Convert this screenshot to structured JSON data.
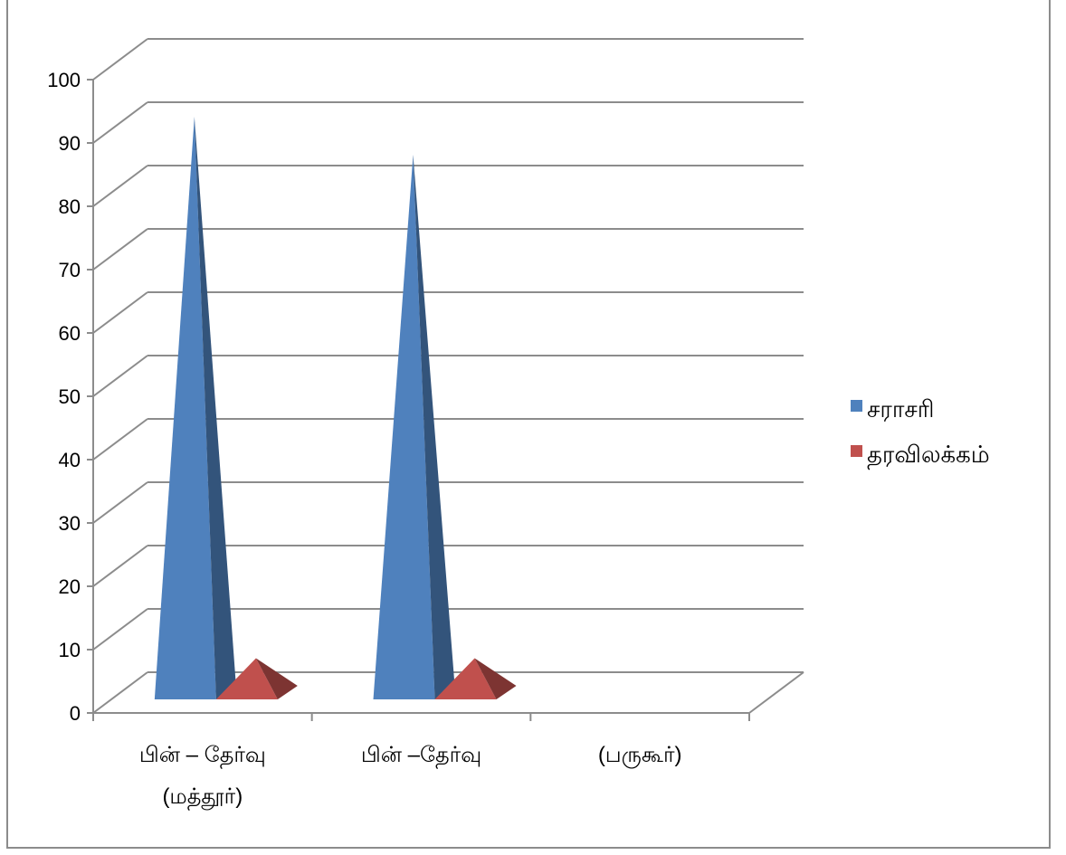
{
  "chart_data": {
    "type": "bar",
    "style": "3d-pyramid",
    "categories": [
      [
        "பின் – தேர்வு",
        "(மத்தூர்)"
      ],
      [
        "பின் –தேர்வு",
        ""
      ],
      [
        "(பருகூர்)",
        ""
      ]
    ],
    "series": [
      {
        "name": "சராசரி",
        "values": [
          92,
          86,
          null
        ],
        "color": "#4f81bd"
      },
      {
        "name": "தரவிலக்கம்",
        "values": [
          6.5,
          6.5,
          null
        ],
        "color": "#c0504d"
      }
    ],
    "ylim": [
      0,
      100
    ],
    "y_ticks": [
      0,
      10,
      20,
      30,
      40,
      50,
      60,
      70,
      80,
      90,
      100
    ],
    "grid": true,
    "legend_position": "right"
  }
}
